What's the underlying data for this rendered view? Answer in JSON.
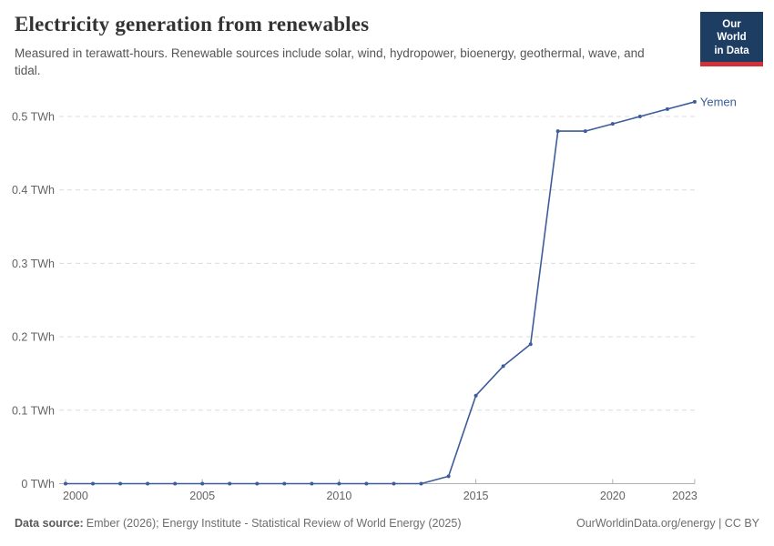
{
  "header": {
    "title": "Electricity generation from renewables",
    "subtitle": "Measured in terawatt-hours. Renewable sources include solar, wind, hydropower, bioenergy, geothermal, wave, and tidal.",
    "logo": {
      "line1": "Our World",
      "line2": "in Data"
    }
  },
  "chart_data": {
    "type": "line",
    "title": "Electricity generation from renewables",
    "unit": "TWh",
    "xlim": [
      2000,
      2023
    ],
    "ylim": [
      0,
      0.52
    ],
    "grid": "horizontal-dashed",
    "legend_position": "end-of-line-label",
    "x_ticks": [
      {
        "value": 2000,
        "label": "2000"
      },
      {
        "value": 2005,
        "label": "2005"
      },
      {
        "value": 2010,
        "label": "2010"
      },
      {
        "value": 2015,
        "label": "2015"
      },
      {
        "value": 2020,
        "label": "2020"
      },
      {
        "value": 2023,
        "label": "2023"
      }
    ],
    "y_ticks": [
      {
        "value": 0,
        "label": "0 TWh"
      },
      {
        "value": 0.1,
        "label": "0.1 TWh"
      },
      {
        "value": 0.2,
        "label": "0.2 TWh"
      },
      {
        "value": 0.3,
        "label": "0.3 TWh"
      },
      {
        "value": 0.4,
        "label": "0.4 TWh"
      },
      {
        "value": 0.5,
        "label": "0.5 TWh"
      }
    ],
    "series": [
      {
        "name": "Yemen",
        "color": "#3d5c99",
        "points": [
          {
            "year": 2000,
            "value": 0
          },
          {
            "year": 2001,
            "value": 0
          },
          {
            "year": 2002,
            "value": 0
          },
          {
            "year": 2003,
            "value": 0
          },
          {
            "year": 2004,
            "value": 0
          },
          {
            "year": 2005,
            "value": 0
          },
          {
            "year": 2006,
            "value": 0
          },
          {
            "year": 2007,
            "value": 0
          },
          {
            "year": 2008,
            "value": 0
          },
          {
            "year": 2009,
            "value": 0
          },
          {
            "year": 2010,
            "value": 0
          },
          {
            "year": 2011,
            "value": 0
          },
          {
            "year": 2012,
            "value": 0
          },
          {
            "year": 2013,
            "value": 0
          },
          {
            "year": 2014,
            "value": 0.01
          },
          {
            "year": 2015,
            "value": 0.12
          },
          {
            "year": 2016,
            "value": 0.16
          },
          {
            "year": 2017,
            "value": 0.19
          },
          {
            "year": 2018,
            "value": 0.48
          },
          {
            "year": 2019,
            "value": 0.48
          },
          {
            "year": 2020,
            "value": 0.49
          },
          {
            "year": 2021,
            "value": 0.5
          },
          {
            "year": 2022,
            "value": 0.51
          },
          {
            "year": 2023,
            "value": 0.52
          }
        ]
      }
    ]
  },
  "footer": {
    "source_label": "Data source:",
    "source_text": "Ember (2026); Energy Institute - Statistical Review of World Energy (2025)",
    "rights": "OurWorldinData.org/energy | CC BY"
  },
  "colors": {
    "line": "#3d5c99",
    "grid": "#dcdcdc",
    "axis": "#b0b0b0",
    "tick_text": "#636363",
    "logo_bg": "#1d3d63",
    "logo_accent": "#d13239"
  }
}
